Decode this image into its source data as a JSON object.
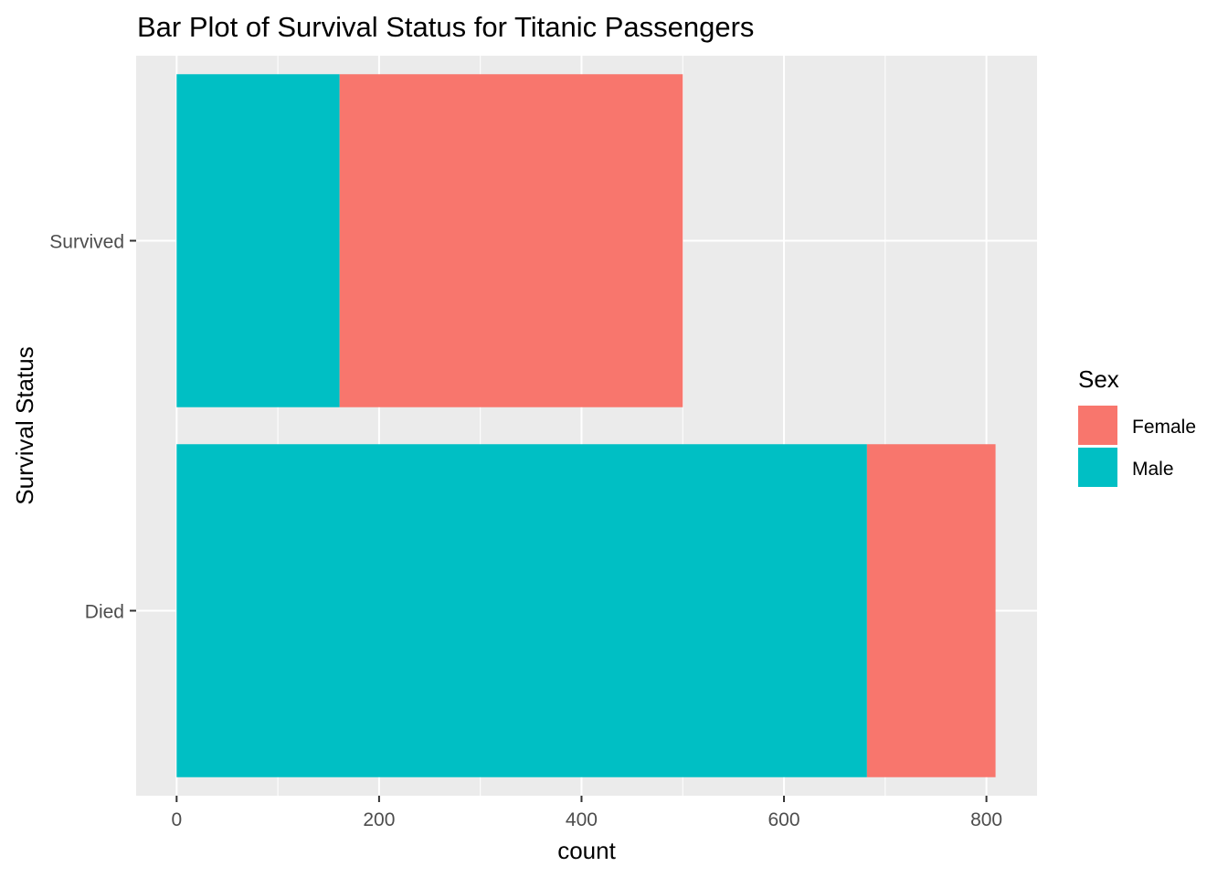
{
  "chart_data": {
    "type": "bar",
    "orientation": "horizontal",
    "stacked": true,
    "title": "Bar Plot of Survival Status for Titanic Passengers",
    "xlabel": "count",
    "ylabel": "Survival Status",
    "categories": [
      "Died",
      "Survived"
    ],
    "series": [
      {
        "name": "Male",
        "values": [
          682,
          161
        ],
        "color": "#00BFC4"
      },
      {
        "name": "Female",
        "values": [
          127,
          339
        ],
        "color": "#F8766D"
      }
    ],
    "xlim": [
      -40,
      850
    ],
    "xticks": [
      0,
      200,
      400,
      600,
      800
    ],
    "grid": true,
    "panel_background": "#EBEBEB",
    "legend": {
      "title": "Sex",
      "position": "right",
      "entries": [
        {
          "label": "Female",
          "color": "#F8766D"
        },
        {
          "label": "Male",
          "color": "#00BFC4"
        }
      ]
    }
  }
}
